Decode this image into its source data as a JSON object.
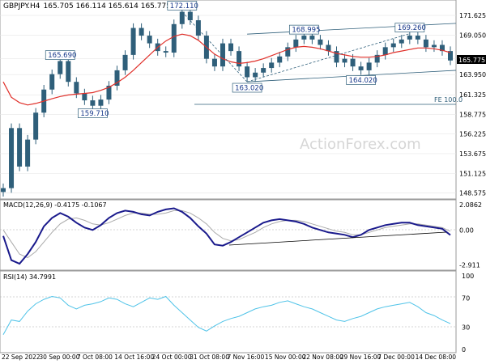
{
  "chart_data": [
    {
      "type": "candlestick",
      "title": "GBPJPY.H4",
      "ohlc_label": "165.705 166.114 165.614 165.775",
      "y_ticks": [
        171.625,
        169.05,
        166.0,
        163.95,
        161.325,
        158.775,
        156.225,
        153.675,
        151.125,
        148.575
      ],
      "ylim": [
        148.0,
        173.0
      ],
      "last_price": "165.775",
      "close": [
        149.2,
        157.0,
        152.0,
        155.5,
        159.0,
        162.0,
        164.0,
        165.7,
        163.0,
        161.5,
        160.6,
        159.9,
        160.7,
        162.5,
        164.5,
        166.5,
        170.0,
        169.0,
        168.0,
        167.0,
        166.8,
        170.5,
        172.1,
        171.0,
        169.0,
        166.0,
        165.0,
        168.0,
        167.0,
        165.0,
        163.6,
        164.2,
        164.8,
        165.5,
        166.3,
        167.5,
        168.5,
        169.0,
        168.5,
        167.8,
        167.0,
        165.5,
        166.0,
        165.0,
        164.5,
        165.5,
        166.5,
        167.5,
        168.0,
        168.5,
        169.0,
        168.5,
        167.5,
        167.8,
        167.0,
        165.775
      ],
      "ma_line": [
        163.0,
        161.0,
        160.3,
        160.0,
        160.2,
        160.5,
        160.8,
        161.1,
        161.3,
        161.4,
        161.5,
        161.6,
        161.9,
        162.3,
        162.9,
        163.6,
        164.5,
        165.5,
        166.5,
        167.5,
        168.3,
        168.9,
        169.2,
        169.0,
        168.4,
        167.5,
        166.6,
        166.0,
        165.6,
        165.4,
        165.5,
        165.7,
        166.0,
        166.4,
        166.8,
        167.2,
        167.5,
        167.6,
        167.5,
        167.3,
        167.0,
        166.7,
        166.5,
        166.3,
        166.2,
        166.2,
        166.3,
        166.5,
        166.8,
        167.0,
        167.2,
        167.4,
        167.4,
        167.3,
        167.1,
        166.8
      ],
      "annotations": [
        {
          "label": "172.110",
          "x_index": 22,
          "y": 172.11
        },
        {
          "label": "165.690",
          "x_index": 7,
          "y": 165.69
        },
        {
          "label": "159.710",
          "x_index": 11,
          "y": 159.71
        },
        {
          "label": "163.020",
          "x_index": 30,
          "y": 163.02
        },
        {
          "label": "168.995",
          "x_index": 37,
          "y": 168.995
        },
        {
          "label": "164.020",
          "x_index": 44,
          "y": 164.02
        },
        {
          "label": "169.260",
          "x_index": 50,
          "y": 169.26
        }
      ],
      "fe_label": "FE 100.0",
      "fe_level": 160.0,
      "watermark": "ActionForex.com"
    },
    {
      "type": "line",
      "title": "MACD(12,26,9) -0.4175 -0.1067",
      "y_ticks": [
        "2.0862",
        "0.00",
        "-2.911"
      ],
      "ylim": [
        -3.2,
        2.3
      ],
      "macd": [
        -0.5,
        -2.5,
        -2.8,
        -2.0,
        -1.0,
        0.3,
        1.0,
        1.4,
        1.1,
        0.6,
        0.2,
        0.0,
        0.4,
        1.0,
        1.4,
        1.6,
        1.5,
        1.3,
        1.2,
        1.5,
        1.7,
        1.8,
        1.5,
        1.0,
        0.3,
        -0.3,
        -1.2,
        -1.3,
        -1.0,
        -0.6,
        -0.2,
        0.2,
        0.6,
        0.8,
        0.9,
        0.8,
        0.7,
        0.5,
        0.2,
        0.0,
        -0.2,
        -0.3,
        -0.4,
        -0.6,
        -0.4,
        0.0,
        0.2,
        0.4,
        0.5,
        0.6,
        0.6,
        0.4,
        0.3,
        0.2,
        0.1,
        -0.42
      ],
      "signal": [
        0.0,
        -1.0,
        -2.0,
        -2.3,
        -1.8,
        -1.0,
        -0.2,
        0.5,
        0.9,
        1.0,
        0.8,
        0.5,
        0.4,
        0.6,
        0.9,
        1.2,
        1.4,
        1.4,
        1.3,
        1.3,
        1.4,
        1.6,
        1.6,
        1.4,
        1.0,
        0.5,
        -0.2,
        -0.7,
        -0.9,
        -0.8,
        -0.5,
        -0.2,
        0.2,
        0.5,
        0.7,
        0.8,
        0.8,
        0.7,
        0.5,
        0.3,
        0.1,
        -0.1,
        -0.2,
        -0.4,
        -0.4,
        -0.2,
        0.0,
        0.2,
        0.3,
        0.4,
        0.5,
        0.5,
        0.4,
        0.3,
        0.2,
        -0.11
      ]
    },
    {
      "type": "line",
      "title": "RSI(14) 34.7991",
      "y_ticks": [
        "100",
        "70",
        "30",
        "0"
      ],
      "ylim": [
        0,
        100
      ],
      "rsi": [
        20,
        40,
        38,
        52,
        62,
        68,
        72,
        70,
        60,
        55,
        60,
        62,
        65,
        70,
        68,
        62,
        58,
        64,
        70,
        68,
        72,
        60,
        50,
        40,
        30,
        25,
        32,
        38,
        42,
        45,
        50,
        55,
        58,
        60,
        64,
        66,
        62,
        58,
        55,
        50,
        45,
        40,
        38,
        42,
        45,
        50,
        55,
        58,
        60,
        62,
        64,
        58,
        50,
        46,
        40,
        35
      ]
    }
  ],
  "x_labels": [
    "22 Sep 2022",
    "30 Sep 00:00",
    "7 Oct 08:00",
    "14 Oct 16:00",
    "24 Oct 00:00",
    "31 Oct 08:00",
    "7 Nov 16:00",
    "15 Nov 00:00",
    "22 Nov 08:00",
    "29 Nov 16:00",
    "7 Dec 00:00",
    "14 Dec 08:00"
  ]
}
